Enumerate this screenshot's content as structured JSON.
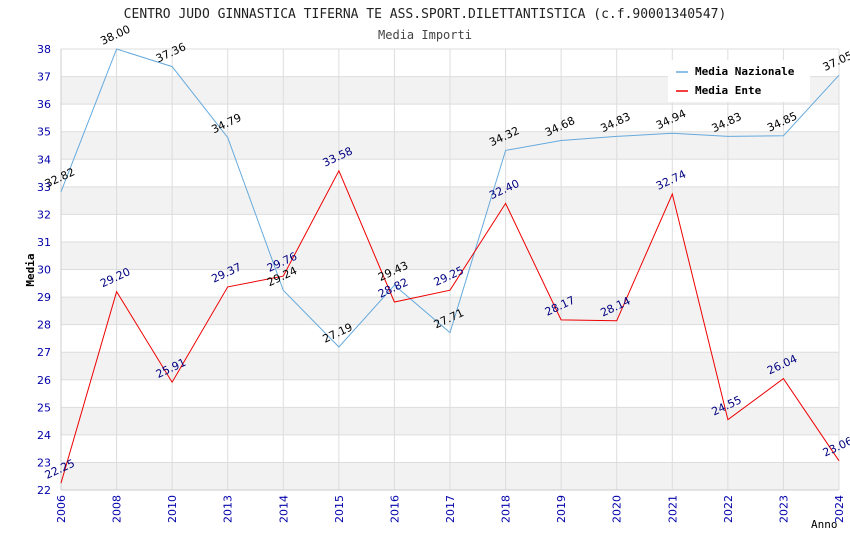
{
  "chart_data": {
    "type": "line",
    "title": "CENTRO JUDO GINNASTICA TIFERNA TE ASS.SPORT.DILETTANTISTICA (c.f.90001340547)",
    "subtitle": "Media Importi",
    "xlabel": "Anno",
    "ylabel": "Media",
    "ylim": [
      22,
      38
    ],
    "yticks": [
      "22",
      "23",
      "24",
      "25",
      "26",
      "27",
      "28",
      "29",
      "30",
      "31",
      "32",
      "33",
      "34",
      "35",
      "36",
      "37",
      "38"
    ],
    "categories": [
      "2006",
      "2008",
      "2010",
      "2013",
      "2014",
      "2015",
      "2016",
      "2017",
      "2018",
      "2019",
      "2020",
      "2021",
      "2022",
      "2023",
      "2024"
    ],
    "legend_position": "top-right",
    "series": [
      {
        "name": "Media Nazionale",
        "color": "#66aadd",
        "label_color": "#000000",
        "values": [
          32.82,
          38.0,
          37.36,
          34.79,
          29.24,
          27.19,
          29.43,
          27.71,
          34.32,
          34.68,
          34.83,
          34.94,
          34.83,
          34.85,
          37.05
        ],
        "labels": [
          "32.82",
          "38.00",
          "37.36",
          "34.79",
          "29.24",
          "27.19",
          "29.43",
          "27.71",
          "34.32",
          "34.68",
          "34.83",
          "34.94",
          "34.83",
          "34.85",
          "37.05"
        ]
      },
      {
        "name": "Media Ente",
        "color": "#ee0000",
        "label_color": "#000080",
        "values": [
          22.25,
          29.2,
          25.91,
          29.37,
          29.76,
          33.58,
          28.82,
          29.25,
          32.4,
          28.17,
          28.14,
          32.74,
          24.55,
          26.04,
          23.06
        ],
        "labels": [
          "22.25",
          "29.20",
          "25.91",
          "29.37",
          "29.76",
          "33.58",
          "28.82",
          "29.25",
          "32.40",
          "28.17",
          "28.14",
          "32.74",
          "24.55",
          "26.04",
          "23.06"
        ]
      }
    ]
  }
}
